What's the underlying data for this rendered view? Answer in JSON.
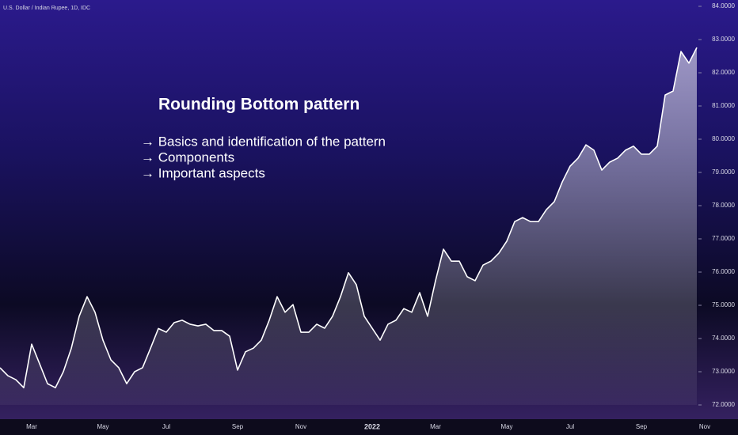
{
  "chart_data": {
    "type": "area",
    "title": "U.S. Dollar / Indian Rupee, 1D, IDC",
    "annotations": [
      "Rounding Bottom pattern",
      "→ Basics and identification of the pattern",
      "→ Components",
      "→ Important aspects"
    ],
    "color": "#ffffff",
    "categories": [
      null,
      null,
      null,
      null,
      "Mar",
      null,
      null,
      null,
      null,
      null,
      null,
      null,
      null,
      "May",
      null,
      null,
      null,
      null,
      null,
      null,
      null,
      "Jul",
      null,
      null,
      null,
      null,
      null,
      null,
      null,
      null,
      "Sep",
      null,
      null,
      null,
      null,
      null,
      null,
      null,
      "Nov",
      null,
      null,
      null,
      null,
      null,
      null,
      null,
      null,
      "2022",
      null,
      null,
      null,
      null,
      null,
      null,
      null,
      "Mar",
      null,
      null,
      null,
      null,
      null,
      null,
      null,
      null,
      "May",
      null,
      null,
      null,
      null,
      null,
      null,
      null,
      "Jul",
      null,
      null,
      null,
      null,
      null,
      null,
      null,
      null,
      "Sep",
      null,
      null,
      null,
      null,
      null,
      null,
      null,
      "Nov"
    ],
    "values": [
      73.12,
      72.88,
      72.76,
      72.52,
      73.83,
      73.24,
      72.64,
      72.52,
      73.0,
      73.7,
      74.67,
      75.26,
      74.79,
      73.95,
      73.36,
      73.12,
      72.64,
      73.0,
      73.12,
      73.7,
      74.3,
      74.19,
      74.48,
      74.55,
      74.43,
      74.38,
      74.43,
      74.24,
      74.24,
      74.07,
      73.05,
      73.6,
      73.71,
      73.95,
      74.55,
      75.26,
      74.79,
      75.02,
      74.19,
      74.19,
      74.43,
      74.31,
      74.67,
      75.26,
      75.98,
      75.62,
      74.67,
      74.31,
      73.95,
      74.43,
      74.55,
      74.9,
      74.79,
      75.38,
      74.67,
      75.74,
      76.69,
      76.33,
      76.33,
      75.86,
      75.74,
      76.21,
      76.33,
      76.57,
      76.93,
      77.52,
      77.64,
      77.52,
      77.52,
      77.88,
      78.12,
      78.71,
      79.19,
      79.43,
      79.83,
      79.67,
      79.07,
      79.31,
      79.43,
      79.67,
      79.79,
      79.55,
      79.55,
      79.79,
      81.33,
      81.45,
      82.64,
      82.29,
      82.76,
      null
    ],
    "ylim": [
      72,
      84
    ],
    "yticks": [
      {
        "value": 72,
        "label": "72.0000"
      },
      {
        "value": 73,
        "label": "73.0000"
      },
      {
        "value": 74,
        "label": "74.0000"
      },
      {
        "value": 75,
        "label": "75.0000"
      },
      {
        "value": 76,
        "label": "76.0000"
      },
      {
        "value": 77,
        "label": "77.0000"
      },
      {
        "value": 78,
        "label": "78.0000"
      },
      {
        "value": 79,
        "label": "79.0000"
      },
      {
        "value": 80,
        "label": "80.0000"
      },
      {
        "value": 81,
        "label": "81.0000"
      },
      {
        "value": 82,
        "label": "82.0000"
      },
      {
        "value": 83,
        "label": "83.0000"
      },
      {
        "value": 84,
        "label": "84.0000"
      }
    ]
  }
}
